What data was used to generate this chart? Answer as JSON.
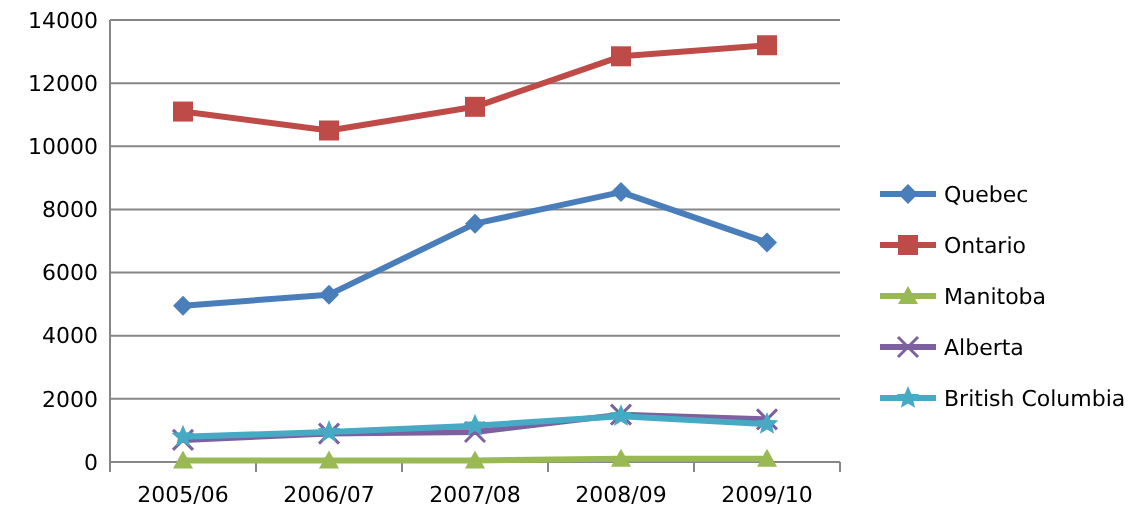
{
  "chart_data": {
    "type": "line",
    "categories": [
      "2005/06",
      "2006/07",
      "2007/08",
      "2008/09",
      "2009/10"
    ],
    "series": [
      {
        "name": "Quebec",
        "color": "#4a7ebb",
        "marker": "diamond",
        "values": [
          4950,
          5300,
          7550,
          8550,
          6950
        ]
      },
      {
        "name": "Ontario",
        "color": "#be4b48",
        "marker": "square",
        "values": [
          11100,
          10500,
          11250,
          12850,
          13200
        ]
      },
      {
        "name": "Manitoba",
        "color": "#98b954",
        "marker": "triangle",
        "values": [
          50,
          50,
          50,
          100,
          100
        ]
      },
      {
        "name": "Alberta",
        "color": "#7d60a0",
        "marker": "cross",
        "values": [
          700,
          900,
          950,
          1500,
          1350
        ]
      },
      {
        "name": "British Columbia",
        "color": "#46aac5",
        "marker": "star",
        "values": [
          800,
          950,
          1150,
          1450,
          1200
        ]
      }
    ],
    "ylim": [
      0,
      14000
    ],
    "yticks": [
      0,
      2000,
      4000,
      6000,
      8000,
      10000,
      12000,
      14000
    ],
    "grid": "y",
    "legend": "right"
  }
}
